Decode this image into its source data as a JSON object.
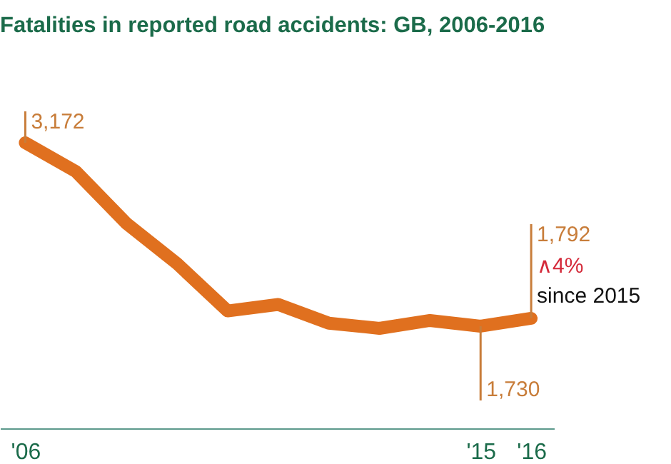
{
  "chart_data": {
    "type": "line",
    "title": "Fatalities in reported road accidents: GB, 2006-2016",
    "x": [
      2006,
      2007,
      2008,
      2009,
      2010,
      2011,
      2012,
      2013,
      2014,
      2015,
      2016
    ],
    "series": [
      {
        "color": "#e0701f",
        "values": [
          3172,
          2946,
          2538,
          2222,
          1850,
          1901,
          1754,
          1713,
          1775,
          1730,
          1792
        ],
        "value_labels": [
          "3,172",
          null,
          null,
          null,
          null,
          null,
          null,
          null,
          null,
          "1,730",
          "1,792"
        ]
      }
    ],
    "xlim": [
      2005.5,
      2016.45
    ],
    "xticks": [
      {
        "value": 2006,
        "label": "'06"
      },
      {
        "value": 2015,
        "label": "'15"
      },
      {
        "value": 2016,
        "label": "'16"
      }
    ],
    "tick_labels": "x",
    "grid": false,
    "marker": "none",
    "line_style": "solid",
    "annotations": [
      {
        "text": "∧4%",
        "x": 2016,
        "y": 1792
      },
      {
        "text": "since 2015",
        "x": 2016,
        "y": 1792
      }
    ]
  }
}
